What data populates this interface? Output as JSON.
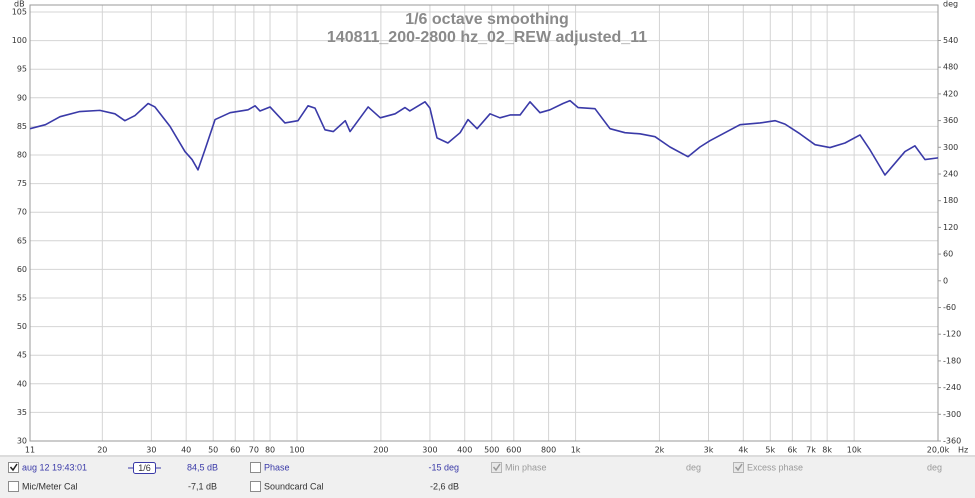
{
  "chart_data": {
    "type": "line",
    "title": "1/6 octave smoothing",
    "subtitle": "140811_200-2800 hz_02_REW adjusted_11",
    "y_unit": "dB",
    "y2_unit": "deg",
    "x_unit": "Hz",
    "log_x": true,
    "grid": true,
    "xlim": [
      11,
      20000
    ],
    "ylim": [
      30,
      105
    ],
    "y2lim": [
      -360,
      604
    ],
    "xticks": [
      11,
      20,
      30,
      40,
      50,
      60,
      70,
      80,
      100,
      200,
      300,
      400,
      500,
      600,
      800,
      {
        "value": 1000,
        "label": "1k"
      },
      {
        "value": 2000,
        "label": "2k"
      },
      {
        "value": 3000,
        "label": "3k"
      },
      {
        "value": 4000,
        "label": "4k"
      },
      {
        "value": 5000,
        "label": "5k"
      },
      {
        "value": 6000,
        "label": "6k"
      },
      {
        "value": 7000,
        "label": "7k"
      },
      {
        "value": 8000,
        "label": "8k"
      },
      {
        "value": 10000,
        "label": "10k"
      },
      {
        "value": 20000,
        "label": "20,0k"
      }
    ],
    "yticks": [
      30,
      35,
      40,
      45,
      50,
      55,
      60,
      65,
      70,
      75,
      80,
      85,
      90,
      95,
      100,
      105
    ],
    "y2ticks": [
      -360,
      -300,
      -240,
      -180,
      -120,
      -60,
      0,
      60,
      120,
      180,
      240,
      300,
      360,
      420,
      480,
      540
    ],
    "x": [
      11,
      12.5,
      14.1,
      16.6,
      19.6,
      22.2,
      24.1,
      26.2,
      29.2,
      30.9,
      35,
      39.6,
      42,
      44.1,
      46.7,
      50.8,
      57.5,
      66.7,
      70.7,
      73.6,
      80,
      90.5,
      100.8,
      109.5,
      116,
      126,
      135,
      149,
      155,
      180,
      199,
      225,
      244,
      254,
      288,
      300,
      318,
      348,
      385,
      411,
      443,
      493,
      535,
      582,
      632,
      686,
      745,
      809,
      901,
      955,
      1020,
      1174,
      1329,
      1504,
      1703,
      1928,
      2182,
      2532,
      2796,
      3037,
      3439,
      3893,
      4593,
      5199,
      5648,
      6392,
      7237,
      8191,
      9273,
      10495,
      11400,
      12900,
      15220,
      16530,
      17960,
      20000
    ],
    "series": [
      {
        "name": "aug 12 19:43:01",
        "color": "#3a3aa8",
        "values": [
          84.6,
          85.3,
          86.7,
          87.6,
          87.8,
          87.2,
          86.0,
          86.9,
          89.0,
          88.4,
          85.0,
          80.6,
          79.2,
          77.4,
          80.9,
          86.2,
          87.4,
          87.9,
          88.6,
          87.7,
          88.4,
          85.6,
          86.0,
          88.6,
          88.2,
          84.4,
          84.1,
          86.0,
          84.1,
          88.4,
          86.5,
          87.2,
          88.3,
          87.7,
          89.3,
          88.2,
          83.0,
          82.1,
          83.9,
          86.2,
          84.6,
          87.2,
          86.5,
          87.0,
          87.0,
          89.3,
          87.4,
          87.9,
          89.0,
          89.5,
          88.3,
          88.1,
          84.6,
          83.9,
          83.7,
          83.2,
          81.4,
          79.7,
          81.4,
          82.5,
          83.9,
          85.3,
          85.6,
          86.0,
          85.4,
          83.7,
          81.8,
          81.3,
          82.1,
          83.5,
          80.9,
          76.5,
          80.6,
          81.6,
          79.2,
          79.5
        ]
      }
    ]
  },
  "panel": {
    "row1": {
      "measurement": "aug 12 19:43:01",
      "smoothing": "1/6",
      "level": "84,5 dB",
      "phase": "Phase",
      "phase_value": "-15 deg",
      "min_phase": "Min phase",
      "min_phase_value": "deg",
      "excess_phase": "Excess phase",
      "excess_phase_value": "deg"
    },
    "row2": {
      "mic_cal": "Mic/Meter Cal",
      "mic_cal_value": "-7,1 dB",
      "soundcard_cal": "Soundcard Cal",
      "soundcard_cal_value": "-2,6 dB"
    }
  }
}
